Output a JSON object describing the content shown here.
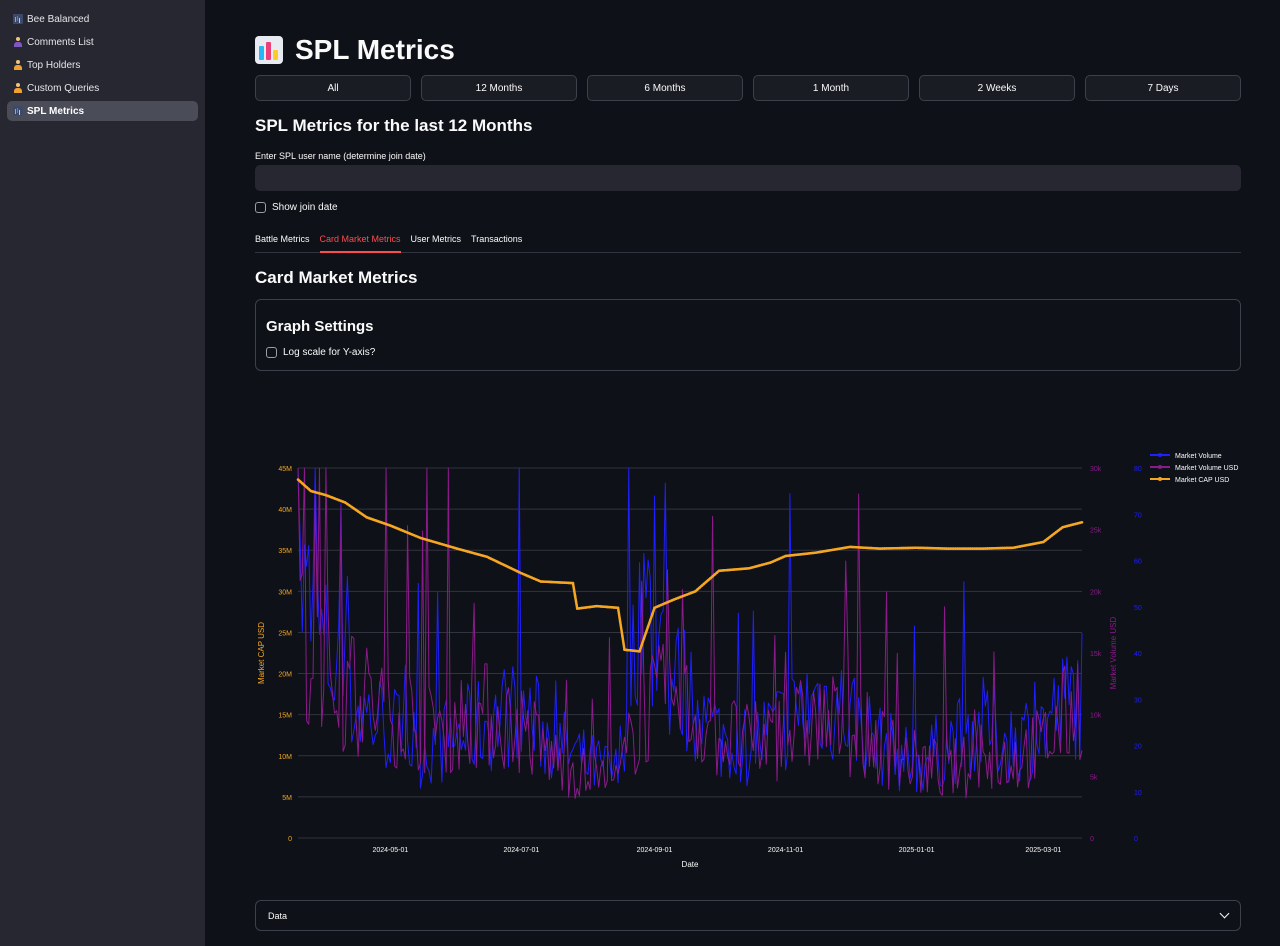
{
  "sidebar": {
    "items": [
      {
        "label": "Bee Balanced",
        "icon": "bar-chart-icon",
        "active": false
      },
      {
        "label": "Comments List",
        "icon": "person-icon",
        "active": false
      },
      {
        "label": "Top Holders",
        "icon": "person-icon",
        "active": false
      },
      {
        "label": "Custom Queries",
        "icon": "person-icon",
        "active": false
      },
      {
        "label": "SPL Metrics",
        "icon": "bar-chart-icon",
        "active": true
      }
    ]
  },
  "page": {
    "title": "SPL Metrics",
    "ranges": [
      "All",
      "12 Months",
      "6 Months",
      "1 Month",
      "2 Weeks",
      "7 Days"
    ],
    "section_title": "SPL Metrics for the last 12 Months",
    "username_label": "Enter SPL user name (determine join date)",
    "username_value": "",
    "show_join_label": "Show join date",
    "tabs": [
      "Battle Metrics",
      "Card Market Metrics",
      "User Metrics",
      "Transactions"
    ],
    "active_tab": 1,
    "card_market_title": "Card Market Metrics",
    "graph_settings_title": "Graph Settings",
    "log_scale_label": "Log scale for Y-axis?",
    "data_expander_label": "Data"
  },
  "colors": {
    "market_volume": "#1f1fff",
    "market_volume_usd": "#8b1a8b",
    "market_cap_usd": "#f5a623",
    "accent": "#ff4b4b"
  },
  "chart_data": {
    "type": "line",
    "xlabel": "Date",
    "x_start": "2024-03-19",
    "x_end": "2025-03-19",
    "x_ticks": [
      "2024-05-01",
      "2024-07-01",
      "2024-09-01",
      "2024-11-01",
      "2025-01-01",
      "2025-03-01"
    ],
    "y_left": {
      "label": "Market CAP USD",
      "range": [
        0,
        45000000
      ],
      "ticks": [
        "0",
        "5M",
        "10M",
        "15M",
        "20M",
        "25M",
        "30M",
        "35M",
        "40M",
        "45M"
      ]
    },
    "y_right": {
      "label": "Market Volume USD",
      "range": [
        0,
        30000
      ],
      "ticks": [
        "0",
        "5k",
        "10k",
        "15k",
        "20k",
        "25k",
        "30k"
      ]
    },
    "y_right2": {
      "range": [
        0,
        80
      ],
      "ticks": [
        "0",
        "10",
        "20",
        "30",
        "40",
        "50",
        "60",
        "70",
        "80"
      ]
    },
    "grid": true,
    "legend": "top-right",
    "series": [
      {
        "name": "Market Volume",
        "axis": "y_right2",
        "markers": true,
        "anchors": [
          [
            "2024-03-19",
            55
          ],
          [
            "2024-04-01",
            40
          ],
          [
            "2024-04-15",
            28
          ],
          [
            "2024-05-01",
            24
          ],
          [
            "2024-05-15",
            19
          ],
          [
            "2024-06-01",
            22
          ],
          [
            "2024-06-15",
            25
          ],
          [
            "2024-07-01",
            28
          ],
          [
            "2024-07-15",
            21
          ],
          [
            "2024-08-01",
            16
          ],
          [
            "2024-08-15",
            14
          ],
          [
            "2024-08-25",
            55
          ],
          [
            "2024-09-05",
            36
          ],
          [
            "2024-09-15",
            32
          ],
          [
            "2024-10-01",
            22
          ],
          [
            "2024-10-15",
            20
          ],
          [
            "2024-11-01",
            25
          ],
          [
            "2024-11-15",
            30
          ],
          [
            "2024-12-01",
            27
          ],
          [
            "2024-12-15",
            20
          ],
          [
            "2025-01-01",
            16
          ],
          [
            "2025-01-15",
            20
          ],
          [
            "2025-02-01",
            24
          ],
          [
            "2025-02-15",
            21
          ],
          [
            "2025-03-01",
            24
          ],
          [
            "2025-03-19",
            32
          ]
        ]
      },
      {
        "name": "Market Volume USD",
        "axis": "y_right",
        "markers": true,
        "anchors": [
          [
            "2024-03-19",
            16000
          ],
          [
            "2024-04-01",
            13000
          ],
          [
            "2024-04-15",
            11500
          ],
          [
            "2024-05-01",
            10500
          ],
          [
            "2024-05-15",
            9500
          ],
          [
            "2024-06-01",
            9500
          ],
          [
            "2024-06-15",
            10000
          ],
          [
            "2024-07-01",
            9000
          ],
          [
            "2024-07-15",
            6500
          ],
          [
            "2024-08-01",
            5000
          ],
          [
            "2024-08-15",
            4500
          ],
          [
            "2024-08-25",
            10000
          ],
          [
            "2024-09-05",
            11000
          ],
          [
            "2024-09-15",
            10500
          ],
          [
            "2024-10-01",
            8500
          ],
          [
            "2024-10-15",
            7500
          ],
          [
            "2024-11-01",
            8500
          ],
          [
            "2024-11-15",
            9500
          ],
          [
            "2024-12-01",
            9000
          ],
          [
            "2024-12-15",
            7500
          ],
          [
            "2025-01-01",
            6000
          ],
          [
            "2025-01-15",
            5500
          ],
          [
            "2025-02-01",
            6000
          ],
          [
            "2025-02-15",
            6500
          ],
          [
            "2025-03-01",
            7500
          ],
          [
            "2025-03-19",
            11500
          ]
        ]
      },
      {
        "name": "Market CAP USD",
        "axis": "y_left",
        "markers": true,
        "points": [
          [
            "2024-03-19",
            43600000
          ],
          [
            "2024-03-25",
            42200000
          ],
          [
            "2024-04-01",
            41700000
          ],
          [
            "2024-04-10",
            40800000
          ],
          [
            "2024-04-20",
            39000000
          ],
          [
            "2024-05-01",
            38000000
          ],
          [
            "2024-05-15",
            36500000
          ],
          [
            "2024-06-01",
            35200000
          ],
          [
            "2024-06-15",
            34200000
          ],
          [
            "2024-07-01",
            32200000
          ],
          [
            "2024-07-10",
            31200000
          ],
          [
            "2024-07-25",
            31000000
          ],
          [
            "2024-07-27",
            27900000
          ],
          [
            "2024-08-05",
            28200000
          ],
          [
            "2024-08-15",
            28000000
          ],
          [
            "2024-08-18",
            22900000
          ],
          [
            "2024-08-25",
            22700000
          ],
          [
            "2024-09-01",
            28000000
          ],
          [
            "2024-09-10",
            29000000
          ],
          [
            "2024-09-20",
            30000000
          ],
          [
            "2024-10-01",
            32500000
          ],
          [
            "2024-10-15",
            32800000
          ],
          [
            "2024-10-25",
            33500000
          ],
          [
            "2024-11-01",
            34300000
          ],
          [
            "2024-11-15",
            34700000
          ],
          [
            "2024-12-01",
            35400000
          ],
          [
            "2024-12-15",
            35200000
          ],
          [
            "2025-01-01",
            35300000
          ],
          [
            "2025-01-15",
            35200000
          ],
          [
            "2025-02-01",
            35200000
          ],
          [
            "2025-02-15",
            35300000
          ],
          [
            "2025-03-01",
            36000000
          ],
          [
            "2025-03-10",
            37800000
          ],
          [
            "2025-03-19",
            38400000
          ]
        ]
      }
    ]
  }
}
